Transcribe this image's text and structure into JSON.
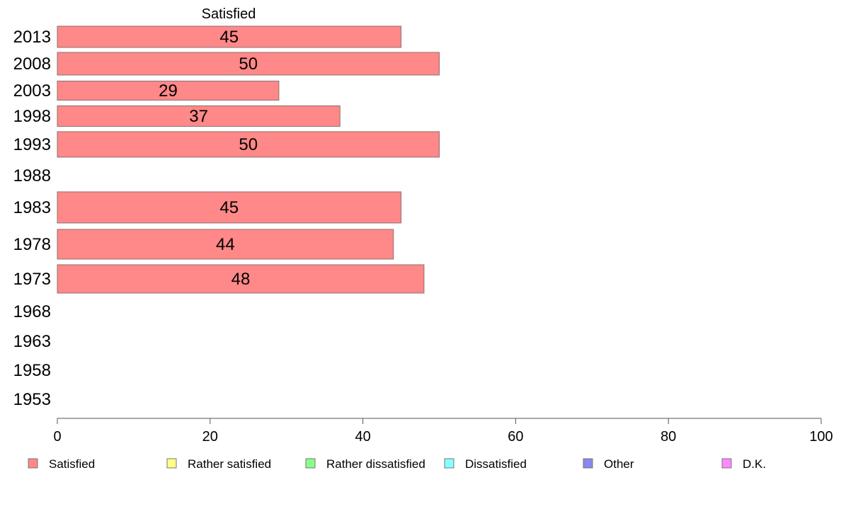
{
  "chart_data": {
    "type": "bar",
    "orientation": "horizontal",
    "series_header": "Satisfied",
    "categories": [
      "2013",
      "2008",
      "2003",
      "1998",
      "1993",
      "1988",
      "1983",
      "1978",
      "1973",
      "1968",
      "1963",
      "1958",
      "1953"
    ],
    "series": [
      {
        "name": "Satisfied",
        "color": "#ff8888",
        "values": [
          45,
          50,
          29,
          37,
          50,
          null,
          45,
          44,
          48,
          null,
          null,
          null,
          null
        ],
        "data_labels": [
          "45",
          "50",
          "29",
          "37",
          "50",
          "",
          "45",
          "44",
          "48",
          "",
          "",
          "",
          ""
        ]
      }
    ],
    "xlim": [
      0,
      100
    ],
    "x_ticks": [
      "0",
      "20",
      "40",
      "60",
      "80",
      "100"
    ],
    "grid": false,
    "legend": {
      "placement": "bottom",
      "items": [
        {
          "label": "Satisfied",
          "color": "#ff8888"
        },
        {
          "label": "Rather satisfied",
          "color": "#ffff88"
        },
        {
          "label": "Rather dissatisfied",
          "color": "#88ff88"
        },
        {
          "label": "Dissatisfied",
          "color": "#88ffff"
        },
        {
          "label": "Other",
          "color": "#8888ee"
        },
        {
          "label": "D.K.",
          "color": "#ff88ff"
        }
      ]
    }
  }
}
